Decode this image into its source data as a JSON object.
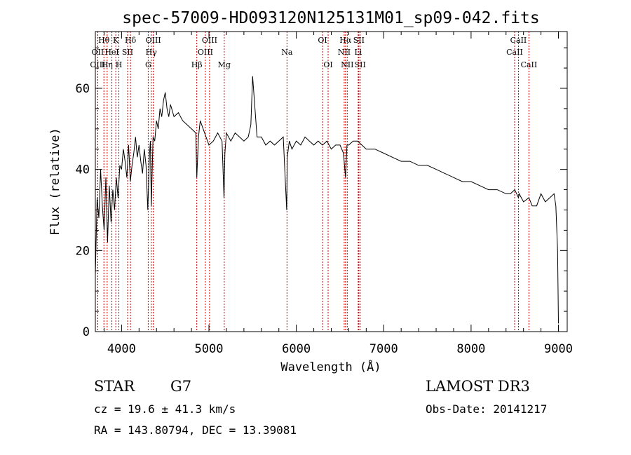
{
  "chart_data": {
    "type": "line",
    "title": "spec-57009-HD093120N125131M01_sp09-042.fits",
    "xlabel": "Wavelength (Å)",
    "ylabel": "Flux (relative)",
    "xlim": [
      3700,
      9100
    ],
    "ylim": [
      0,
      74
    ],
    "x_ticks": [
      4000,
      5000,
      6000,
      7000,
      8000,
      9000
    ],
    "y_ticks": [
      0,
      20,
      40,
      60
    ],
    "x_tick_labels": [
      "4000",
      "5000",
      "6000",
      "7000",
      "8000",
      "9000"
    ],
    "y_tick_labels": [
      "0",
      "20",
      "40",
      "60"
    ],
    "line_color": "#000000",
    "marker_color": "#cc0000",
    "series": [
      {
        "name": "flux",
        "x": [
          3700,
          3720,
          3740,
          3760,
          3780,
          3800,
          3820,
          3840,
          3860,
          3880,
          3900,
          3920,
          3940,
          3960,
          3980,
          4000,
          4020,
          4040,
          4060,
          4080,
          4100,
          4120,
          4140,
          4160,
          4180,
          4200,
          4220,
          4240,
          4260,
          4280,
          4300,
          4320,
          4330,
          4340,
          4360,
          4380,
          4400,
          4420,
          4440,
          4460,
          4480,
          4500,
          4520,
          4540,
          4560,
          4600,
          4650,
          4700,
          4750,
          4800,
          4850,
          4861,
          4880,
          4900,
          4950,
          5000,
          5050,
          5100,
          5150,
          5172,
          5183,
          5200,
          5250,
          5300,
          5350,
          5400,
          5450,
          5480,
          5500,
          5550,
          5600,
          5650,
          5700,
          5750,
          5800,
          5850,
          5890,
          5896,
          5920,
          5950,
          6000,
          6050,
          6100,
          6150,
          6200,
          6250,
          6300,
          6350,
          6400,
          6450,
          6500,
          6540,
          6563,
          6580,
          6600,
          6650,
          6700,
          6750,
          6800,
          6900,
          7000,
          7100,
          7200,
          7300,
          7400,
          7500,
          7600,
          7700,
          7800,
          7900,
          8000,
          8100,
          8200,
          8300,
          8400,
          8450,
          8500,
          8542,
          8550,
          8600,
          8662,
          8700,
          8750,
          8800,
          8850,
          8900,
          8950,
          8970,
          8990,
          9000
        ],
        "y": [
          14,
          33,
          28,
          40,
          31,
          25,
          38,
          22,
          36,
          27,
          35,
          30,
          38,
          33,
          41,
          40,
          45,
          42,
          38,
          46,
          37,
          41,
          44,
          48,
          43,
          46,
          42,
          39,
          45,
          41,
          30,
          44,
          47,
          31,
          48,
          47,
          52,
          50,
          55,
          53,
          57,
          59,
          55,
          53,
          56,
          53,
          54,
          52,
          51,
          50,
          49,
          38,
          48,
          52,
          49,
          46,
          47,
          49,
          47,
          33,
          44,
          49,
          47,
          49,
          48,
          47,
          48,
          51,
          63,
          48,
          48,
          46,
          47,
          46,
          47,
          48,
          30,
          43,
          47,
          45,
          47,
          46,
          48,
          47,
          46,
          47,
          46,
          47,
          45,
          46,
          46,
          44,
          38,
          46,
          46,
          47,
          47,
          46,
          45,
          45,
          44,
          43,
          42,
          42,
          41,
          41,
          40,
          39,
          38,
          37,
          37,
          36,
          35,
          35,
          34,
          34,
          35,
          33,
          34,
          32,
          33,
          31,
          31,
          34,
          32,
          33,
          34,
          31,
          20,
          2
        ]
      }
    ],
    "spectral_lines": [
      {
        "label": "Hθ",
        "wl": 3798,
        "row": 1
      },
      {
        "label": "OII",
        "wl": 3727,
        "row": 2
      },
      {
        "label": "OIII",
        "wl": 3727,
        "row": 3
      },
      {
        "label": "K",
        "wl": 3934,
        "row": 1
      },
      {
        "label": "HeI",
        "wl": 3889,
        "row": 2
      },
      {
        "label": "Hη",
        "wl": 3835,
        "row": 3
      },
      {
        "label": "SII",
        "wl": 4069,
        "row": 2
      },
      {
        "label": "H",
        "wl": 3969,
        "row": 3
      },
      {
        "label": "Hδ",
        "wl": 4102,
        "row": 1
      },
      {
        "label": "OIII",
        "wl": 4363,
        "row": 1
      },
      {
        "label": "Hγ",
        "wl": 4340,
        "row": 2
      },
      {
        "label": "G",
        "wl": 4305,
        "row": 3
      },
      {
        "label": "Hβ",
        "wl": 4861,
        "row": 3
      },
      {
        "label": "OIII",
        "wl": 5007,
        "row": 1
      },
      {
        "label": "OIII",
        "wl": 4959,
        "row": 2
      },
      {
        "label": "Mg",
        "wl": 5175,
        "row": 3
      },
      {
        "label": "Na",
        "wl": 5893,
        "row": 2
      },
      {
        "label": "OI",
        "wl": 6300,
        "row": 1
      },
      {
        "label": "OI",
        "wl": 6364,
        "row": 3
      },
      {
        "label": "Hα",
        "wl": 6563,
        "row": 1
      },
      {
        "label": "NII",
        "wl": 6548,
        "row": 2
      },
      {
        "label": "NII",
        "wl": 6583,
        "row": 3
      },
      {
        "label": "SII",
        "wl": 6716,
        "row": 1
      },
      {
        "label": "Li",
        "wl": 6708,
        "row": 2
      },
      {
        "label": "SII",
        "wl": 6731,
        "row": 3
      },
      {
        "label": "CaII",
        "wl": 8542,
        "row": 1
      },
      {
        "label": "CaII",
        "wl": 8498,
        "row": 2
      },
      {
        "label": "CaII",
        "wl": 8662,
        "row": 3
      }
    ]
  },
  "info": {
    "object_class": "STAR",
    "subclass": "G7",
    "survey": "LAMOST DR3",
    "cz": "cz = 19.6 ± 41.3 km/s",
    "obs_date": "Obs-Date: 20141217",
    "coords": "RA = 143.80794, DEC =  13.39081"
  }
}
